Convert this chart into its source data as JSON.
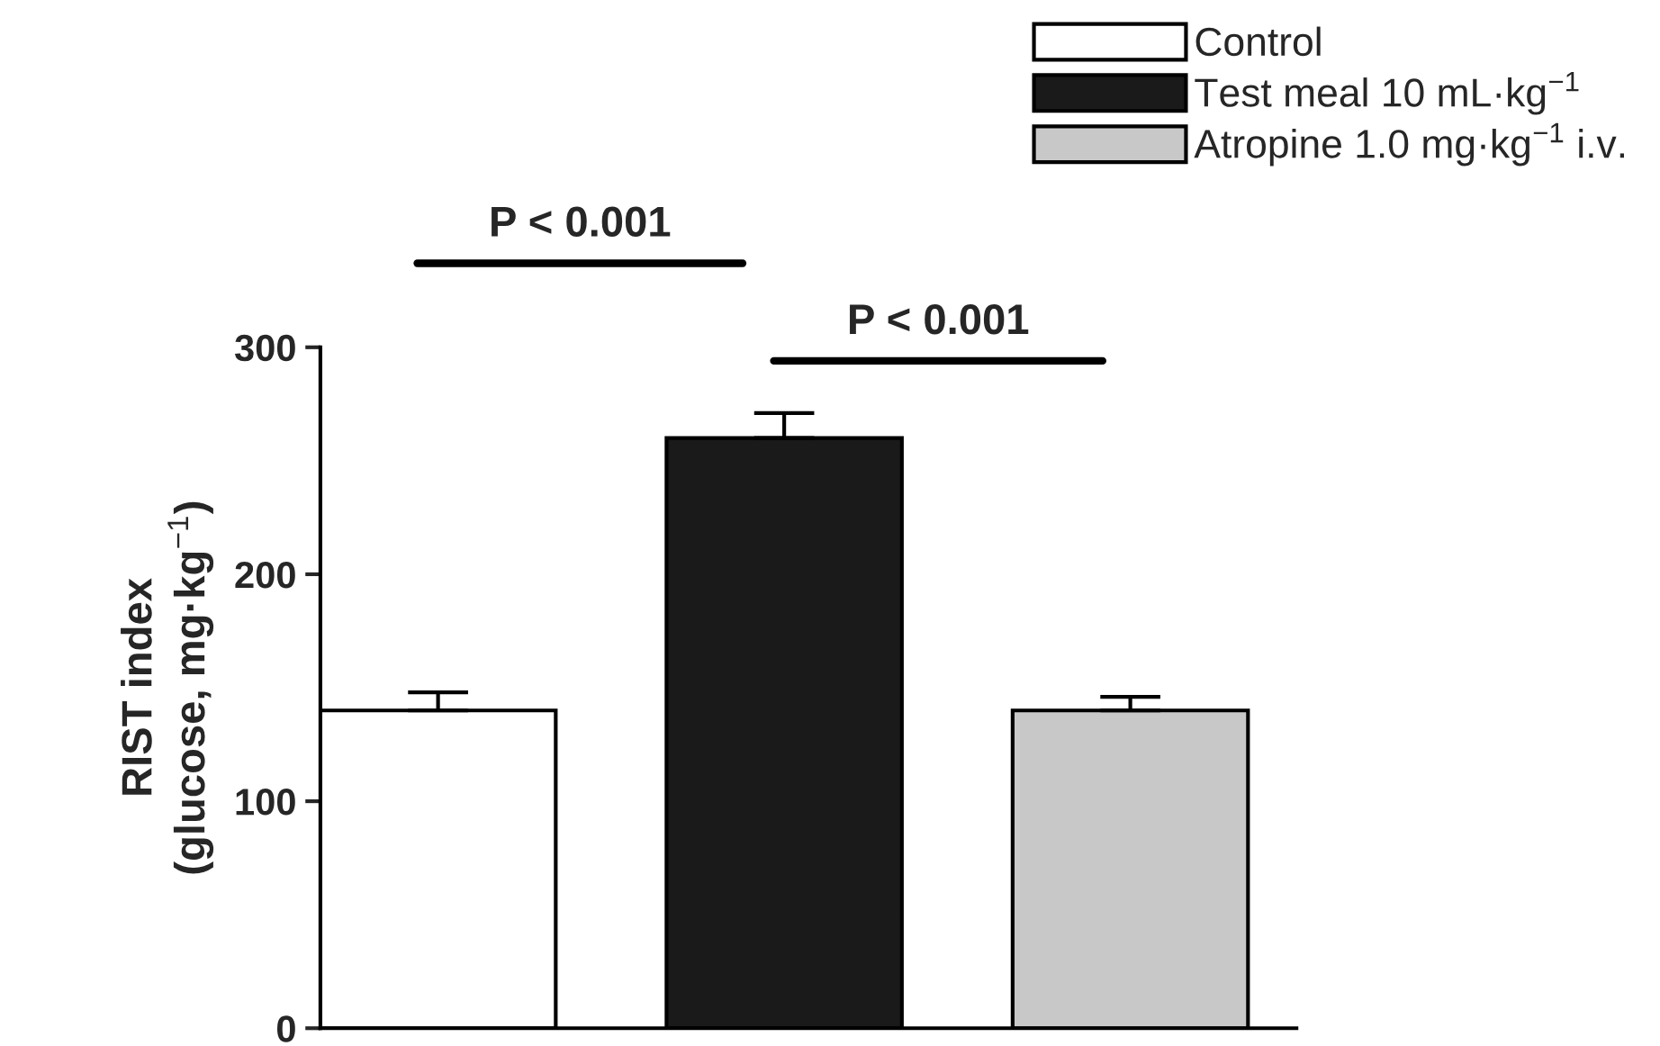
{
  "chart_data": {
    "type": "bar",
    "categories": [
      null,
      null,
      null
    ],
    "series": [
      {
        "name": "Control",
        "color": "#ffffff",
        "values": [
          140,
          null,
          null
        ],
        "errors": [
          8,
          null,
          null
        ]
      },
      {
        "name": "Test meal 10 mL·kg$^{−1}$",
        "color": "#1a1a1a",
        "values": [
          null,
          260,
          null
        ],
        "errors": [
          null,
          11,
          null
        ]
      },
      {
        "name": "Atropine 1.0 mg·kg$^{−1}$ i.v.",
        "color": "#c8c8c8",
        "values": [
          null,
          null,
          140
        ],
        "errors": [
          null,
          null,
          6
        ]
      }
    ],
    "ylabel": "RIST index\n(glucose, mg·kg$^{−1}$)",
    "ylim": [
      0,
      300
    ],
    "yticks": [
      0,
      100,
      200,
      300
    ],
    "annotations": [
      "P < 0.001",
      "P < 0.001"
    ],
    "grid": false,
    "legend": "top right",
    "tick_labels": "y"
  }
}
